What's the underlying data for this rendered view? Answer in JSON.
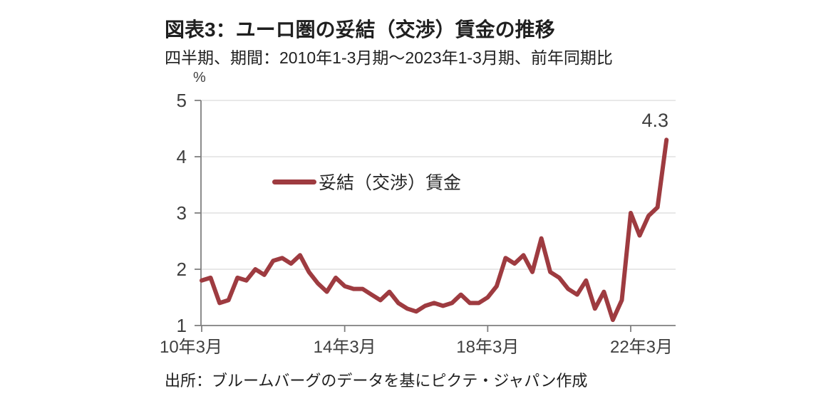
{
  "figure": {
    "title": "図表3：ユーロ圏の妥結（交渉）賃金の推移",
    "subtitle": "四半期、期間：2010年1-3月期～2023年1-3月期、前年同期比",
    "unit_label": "%",
    "legend_label": "妥結（交渉）賃金",
    "source": "出所：ブルームバーグのデータを基にピクテ・ジャパン作成"
  },
  "colors": {
    "line": "#9e3b40",
    "grid": "#d9d9d9",
    "axis": "#7f7f7f",
    "tick_text": "#3f3f3f",
    "text": "#1f1f1f"
  },
  "chart_data": {
    "type": "line",
    "title": "図表3：ユーロ圏の妥結（交渉）賃金の推移",
    "subtitle": "四半期、期間：2010年1-3月期～2023年1-3月期、前年同期比",
    "ylabel": "%",
    "ylim": [
      1,
      5
    ],
    "y_ticks": [
      1,
      2,
      3,
      4,
      5
    ],
    "grid": "horizontal",
    "legend_position": "inside-left",
    "x_start": "2010-Q1",
    "x_end": "2023-Q1",
    "x_frequency": "quarterly",
    "x_tick_labels": [
      "10年3月",
      "14年3月",
      "18年3月",
      "22年3月"
    ],
    "x_tick_indices": [
      0,
      16,
      32,
      48
    ],
    "annotation": {
      "text": "4.3",
      "index": 52,
      "value": 4.3
    },
    "series": [
      {
        "name": "妥結（交渉）賃金",
        "values": [
          1.8,
          1.85,
          1.4,
          1.45,
          1.85,
          1.8,
          2.0,
          1.9,
          2.15,
          2.2,
          2.1,
          2.25,
          1.95,
          1.75,
          1.6,
          1.85,
          1.7,
          1.65,
          1.65,
          1.55,
          1.45,
          1.6,
          1.4,
          1.3,
          1.25,
          1.35,
          1.4,
          1.35,
          1.4,
          1.55,
          1.4,
          1.4,
          1.5,
          1.7,
          2.2,
          2.1,
          2.25,
          1.95,
          2.55,
          1.95,
          1.85,
          1.65,
          1.55,
          1.8,
          1.3,
          1.6,
          1.1,
          1.45,
          3.0,
          2.6,
          2.95,
          3.1,
          4.3
        ]
      }
    ]
  }
}
